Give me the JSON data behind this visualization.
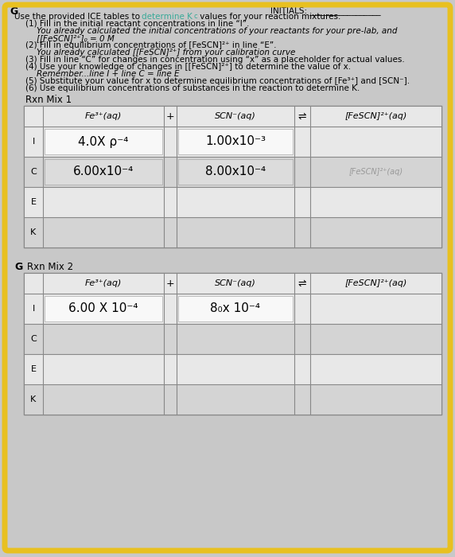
{
  "bg_color": "#c8c8c8",
  "yellow_border_color": "#e8c020",
  "table_border_color": "#888888",
  "table_fill": "#e0e0e0",
  "white_fill": "#f8f8f8",
  "gray_fill": "#d0d0d0",
  "teal_color": "#3aaa99",
  "text_color": "#111111",
  "gray_text": "#999999",
  "initials_text": "INITIALS:",
  "rxn1_label": "Rxn Mix 1",
  "rxn2_label": "Rxn Mix 2",
  "g_label": "G",
  "col1_hdr": "Fe³⁺(aq)",
  "col2_hdr": "SCN⁻(aq)",
  "col3_hdr": "[FeSCN]²⁺(aq)",
  "plus_sign": "+",
  "eq_sign": "⇌",
  "row1_labels": [
    "I",
    "C",
    "E",
    "K⁣"
  ],
  "row2_labels": [
    "I",
    "C",
    "E",
    "K⁣"
  ],
  "rxn1_I_fe": "4.0X ρ⁻⁴",
  "rxn1_I_scn": "1.00x10⁻³",
  "rxn1_C_fe": "6.00x10⁻⁴",
  "rxn1_C_scn": "8.00x10⁻⁴",
  "rxn1_C_fescn_ghost": "[FeSCN]²⁺(aq)",
  "rxn2_I_fe": "6.00 X 10⁻⁴",
  "rxn2_I_scn": "8₀x 10⁻⁴",
  "instr_lines": [
    [
      "normal",
      "black",
      0,
      "Use the provided ICE tables to "
    ],
    [
      "normal",
      "#3aaa99",
      0,
      "determine K"
    ],
    [
      "normal",
      "black",
      0,
      " values for your reaction mixtures."
    ],
    [
      "normal",
      "black",
      14,
      "(1) Fill in the initial reactant concentrations in line “I”."
    ],
    [
      "italic",
      "black",
      28,
      "You already calculated the initial concentrations of your reactants for your pre-lab, and"
    ],
    [
      "italic",
      "black",
      28,
      "[[FeSCN]²⁺]₀ = 0 M"
    ],
    [
      "normal",
      "black",
      14,
      "(2) Fill in equilibrium concentrations of [FeSCN]²⁺ in line “E”."
    ],
    [
      "italic",
      "black",
      28,
      "You already calculated [[FeSCN]²⁺] from your calibration curve"
    ],
    [
      "normal",
      "black",
      14,
      "(3) Fill in line “C” for changes in concentration using “x” as a placeholder for actual values."
    ],
    [
      "normal",
      "black",
      14,
      "(4) Use your knowledge of changes in [[FeSCN]²⁺] to determine the value of x."
    ],
    [
      "italic",
      "black",
      28,
      "Remember...line I + line C = line E"
    ],
    [
      "normal",
      "black",
      14,
      "(5) Substitute your value for x to determine equilibrium concentrations of [Fe³⁺] and [SCN⁻]."
    ],
    [
      "normal",
      "black",
      14,
      "(6) Use equilibrium concentrations of substances in the reaction to determine K⁣."
    ]
  ]
}
